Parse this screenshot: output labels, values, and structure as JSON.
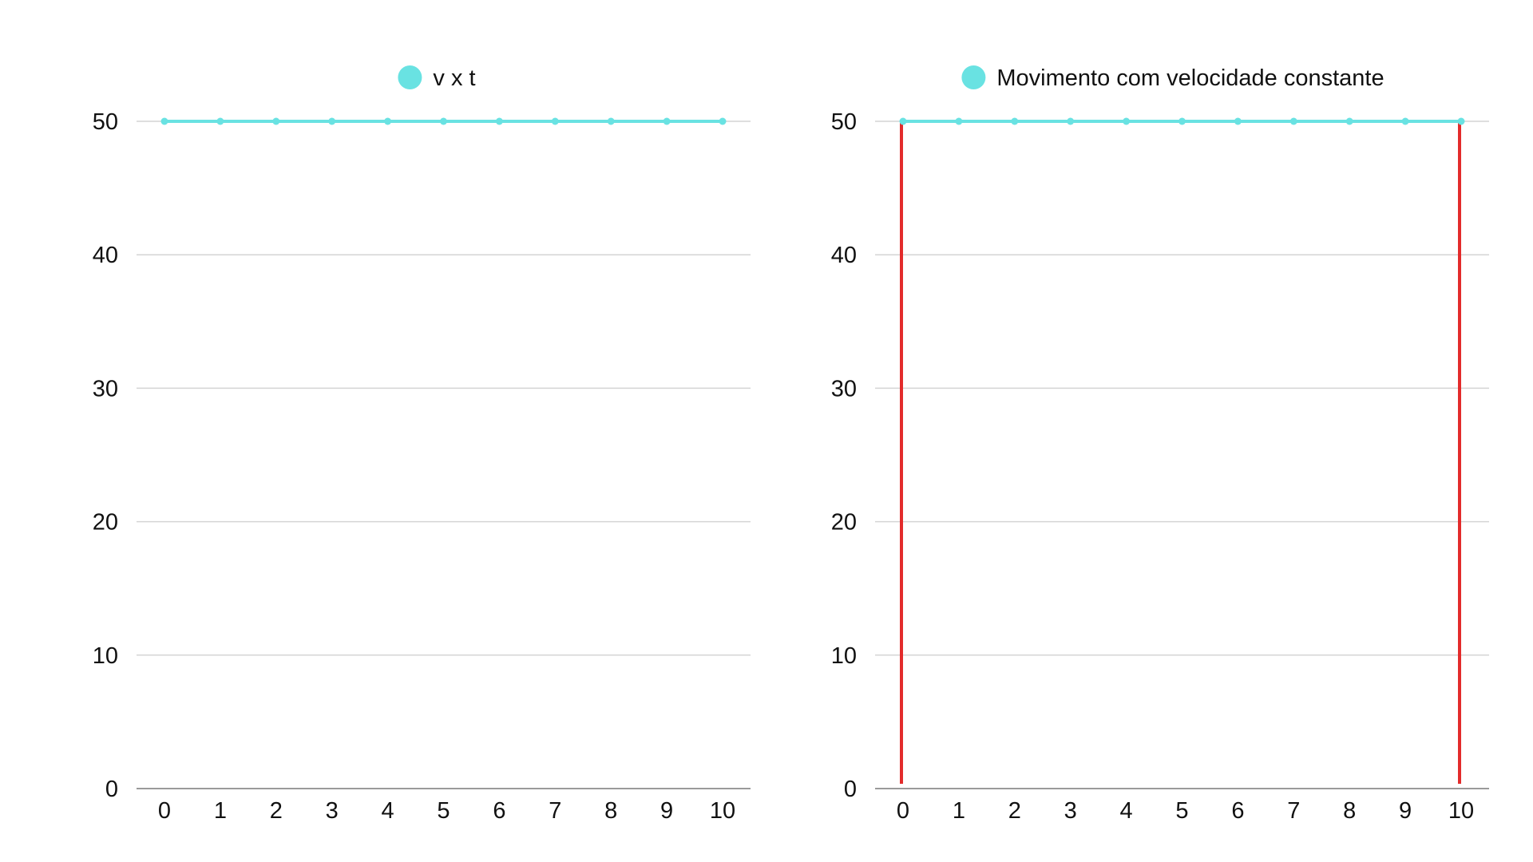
{
  "chart_data": [
    {
      "type": "line",
      "title": "",
      "xlabel": "",
      "ylabel": "",
      "x": [
        0,
        1,
        2,
        3,
        4,
        5,
        6,
        7,
        8,
        9,
        10
      ],
      "series": [
        {
          "name": "v x t",
          "color": "#69e2e2",
          "values": [
            50,
            50,
            50,
            50,
            50,
            50,
            50,
            50,
            50,
            50,
            50
          ]
        }
      ],
      "ylim": [
        0,
        50
      ],
      "yticks": [
        0,
        10,
        20,
        30,
        40,
        50
      ],
      "grid": "horizontal",
      "legend": "top-center",
      "vertical_markers": []
    },
    {
      "type": "line",
      "title": "",
      "xlabel": "",
      "ylabel": "",
      "x": [
        0,
        1,
        2,
        3,
        4,
        5,
        6,
        7,
        8,
        9,
        10
      ],
      "series": [
        {
          "name": "Movimento com velocidade constante",
          "color": "#69e2e2",
          "values": [
            50,
            50,
            50,
            50,
            50,
            50,
            50,
            50,
            50,
            50,
            50
          ]
        }
      ],
      "ylim": [
        0,
        50
      ],
      "yticks": [
        0,
        10,
        20,
        30,
        40,
        50
      ],
      "grid": "horizontal",
      "legend": "top-center",
      "vertical_markers": [
        {
          "x": 0,
          "from": 0,
          "to": 50,
          "color": "#e32b2b"
        },
        {
          "x": 10,
          "from": 0,
          "to": 50,
          "color": "#e32b2b"
        }
      ]
    }
  ]
}
